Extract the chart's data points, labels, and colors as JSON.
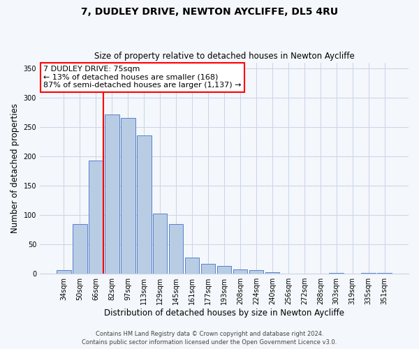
{
  "title": "7, DUDLEY DRIVE, NEWTON AYCLIFFE, DL5 4RU",
  "subtitle": "Size of property relative to detached houses in Newton Aycliffe",
  "xlabel": "Distribution of detached houses by size in Newton Aycliffe",
  "ylabel": "Number of detached properties",
  "bar_labels": [
    "34sqm",
    "50sqm",
    "66sqm",
    "82sqm",
    "97sqm",
    "113sqm",
    "129sqm",
    "145sqm",
    "161sqm",
    "177sqm",
    "193sqm",
    "208sqm",
    "224sqm",
    "240sqm",
    "256sqm",
    "272sqm",
    "288sqm",
    "303sqm",
    "319sqm",
    "335sqm",
    "351sqm"
  ],
  "bar_values": [
    6,
    84,
    193,
    271,
    265,
    236,
    103,
    84,
    27,
    17,
    13,
    7,
    6,
    2,
    0,
    0,
    0,
    1,
    0,
    1,
    1
  ],
  "bar_color": "#b8cce4",
  "bar_edge_color": "#4472c4",
  "ylim": [
    0,
    360
  ],
  "yticks": [
    0,
    50,
    100,
    150,
    200,
    250,
    300,
    350
  ],
  "annotation_title": "7 DUDLEY DRIVE: 75sqm",
  "annotation_line1": "← 13% of detached houses are smaller (168)",
  "annotation_line2": "87% of semi-detached houses are larger (1,137) →",
  "footer1": "Contains HM Land Registry data © Crown copyright and database right 2024.",
  "footer2": "Contains public sector information licensed under the Open Government Licence v3.0.",
  "background_color": "#f4f7fb",
  "grid_color": "#c8d4e8"
}
